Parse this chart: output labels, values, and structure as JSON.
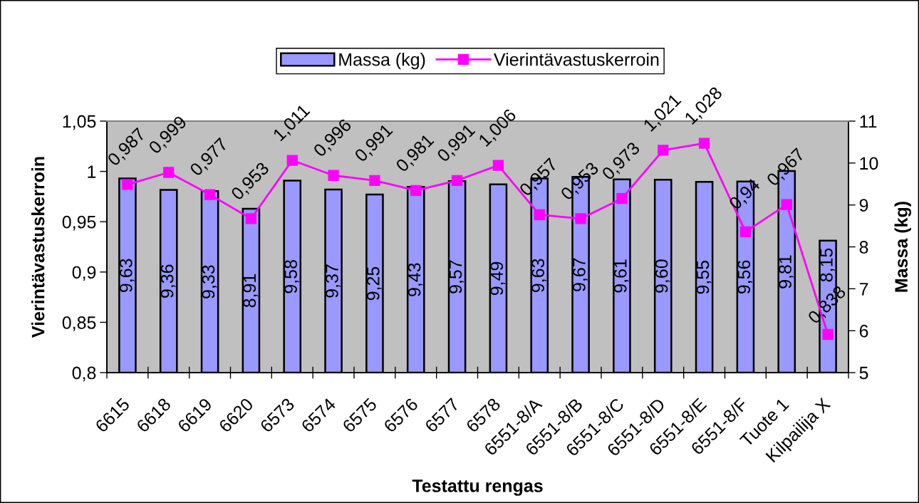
{
  "chart_data": {
    "type": "bar",
    "xlabel": "Testattu rengas",
    "ylabel": "Vierintävastuskerroin",
    "y2label": "Massa (kg)",
    "categories": [
      "6615",
      "6618",
      "6619",
      "6620",
      "6573",
      "6574",
      "6575",
      "6576",
      "6577",
      "6578",
      "6551-8/A",
      "6551-8/B",
      "6551-8/C",
      "6551-8/D",
      "6551-8/E",
      "6551-8/F",
      "Tuote 1",
      "Kilpailija X"
    ],
    "series": [
      {
        "name": "Massa (kg)",
        "axis": "y2",
        "color": "#9999ff",
        "values": [
          9.63,
          9.36,
          9.33,
          8.91,
          9.58,
          9.37,
          9.25,
          9.43,
          9.57,
          9.49,
          9.63,
          9.67,
          9.61,
          9.6,
          9.55,
          9.56,
          9.81,
          8.15
        ],
        "value_labels": [
          "9,63",
          "9,36",
          "9,33",
          "8,91",
          "9,58",
          "9,37",
          "9,25",
          "9,43",
          "9,57",
          "9,49",
          "9,63",
          "9,67",
          "9,61",
          "9,60",
          "9,55",
          "9,56",
          "9,81",
          "8,15"
        ]
      },
      {
        "name": "Vierintävastuskerroin",
        "type": "line",
        "axis": "y",
        "color": "#ff00ff",
        "marker": "square",
        "line_style": "solid",
        "values": [
          0.987,
          0.999,
          0.977,
          0.953,
          1.011,
          0.996,
          0.991,
          0.981,
          0.991,
          1.006,
          0.957,
          0.953,
          0.973,
          1.021,
          1.028,
          0.94,
          0.967,
          0.838
        ],
        "value_labels": [
          "0,987",
          "0,999",
          "0,977",
          "0,953",
          "1,011",
          "0,996",
          "0,991",
          "0,981",
          "0,991",
          "1,006",
          "0,957",
          "0,953",
          "0,973",
          "1,021",
          "1,028",
          "0,94",
          "0,967",
          "0,838"
        ]
      }
    ],
    "ylim": [
      0.8,
      1.05
    ],
    "yticks": [
      {
        "value": 0.8,
        "label": "0,8"
      },
      {
        "value": 0.85,
        "label": "0,85"
      },
      {
        "value": 0.9,
        "label": "0,9"
      },
      {
        "value": 0.95,
        "label": "0,95"
      },
      1,
      {
        "value": 1.05,
        "label": "1,05"
      }
    ],
    "y2lim": [
      5,
      11
    ],
    "y2ticks": [
      5,
      6,
      7,
      8,
      9,
      10,
      11
    ],
    "legend": "top"
  }
}
